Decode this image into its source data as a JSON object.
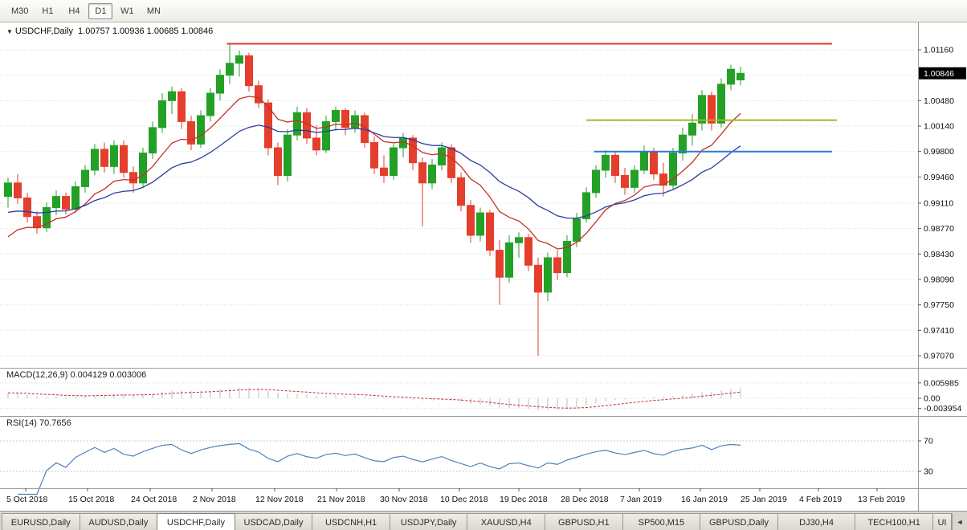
{
  "toolbar": {
    "timeframes": [
      {
        "label": "M30",
        "active": false
      },
      {
        "label": "H1",
        "active": false
      },
      {
        "label": "H4",
        "active": false
      },
      {
        "label": "D1",
        "active": true
      },
      {
        "label": "W1",
        "active": false
      },
      {
        "label": "MN",
        "active": false
      }
    ]
  },
  "chart": {
    "collapse_arrow": "▼",
    "title": "USDCHF,Daily",
    "ohlc": "1.00757 1.00936 1.00685 1.00846",
    "macd_label": "MACD(12,26,9) 0.004129 0.003006",
    "rsi_label": "RSI(14) 70.7656",
    "current_price": "1.00846"
  },
  "price_axis": [
    "1.01160",
    "1.00480",
    "1.00140",
    "0.99800",
    "0.99460",
    "0.99110",
    "0.98770",
    "0.98430",
    "0.98090",
    "0.97750",
    "0.97410",
    "0.97070"
  ],
  "macd_axis": [
    "0.005985",
    "0.00",
    "-0.003954"
  ],
  "rsi_axis": [
    "70",
    "30"
  ],
  "date_axis": [
    "5 Oct 2018",
    "15 Oct 2018",
    "24 Oct 2018",
    "2 Nov 2018",
    "12 Nov 2018",
    "21 Nov 2018",
    "30 Nov 2018",
    "10 Dec 2018",
    "19 Dec 2018",
    "28 Dec 2018",
    "7 Jan 2019",
    "16 Jan 2019",
    "25 Jan 2019",
    "4 Feb 2019",
    "13 Feb 2019"
  ],
  "tabs": [
    {
      "label": "EURUSD,Daily",
      "active": false
    },
    {
      "label": "AUDUSD,Daily",
      "active": false
    },
    {
      "label": "USDCHF,Daily",
      "active": true
    },
    {
      "label": "USDCAD,Daily",
      "active": false
    },
    {
      "label": "USDCNH,H1",
      "active": false
    },
    {
      "label": "USDJPY,Daily",
      "active": false
    },
    {
      "label": "XAUUSD,H4",
      "active": false
    },
    {
      "label": "GBPUSD,H1",
      "active": false
    },
    {
      "label": "SP500,M15",
      "active": false
    },
    {
      "label": "GBPUSD,Daily",
      "active": false
    },
    {
      "label": "DJ30,H4",
      "active": false
    },
    {
      "label": "TECH100,H1",
      "active": false
    },
    {
      "label": "UI",
      "active": false,
      "truncated": true
    }
  ],
  "tab_scroll_arrow": "◄",
  "chart_data": {
    "type": "candlestick",
    "symbol": "USDCHF",
    "timeframe": "Daily",
    "last_ohlc": {
      "open": 1.00757,
      "high": 1.00936,
      "low": 1.00685,
      "close": 1.00846
    },
    "ylim": [
      0.9693,
      1.015
    ],
    "grid_prices": [
      1.0116,
      1.0082,
      1.0048,
      1.0014,
      0.998,
      0.9946,
      0.9911,
      0.9877,
      0.9843,
      0.9809,
      0.9775,
      0.9741,
      0.9707
    ],
    "macd_grid": [
      0.005985,
      0,
      -0.003954
    ],
    "rsi_levels": [
      70,
      30
    ],
    "macd_values": [
      0.004129,
      0.003006
    ],
    "rsi_value": 70.7656,
    "macd_seeds": [
      0.9938,
      0.9915
    ],
    "candles": [
      [
        0.992,
        0.9945,
        0.9905,
        0.9938
      ],
      [
        0.9938,
        0.995,
        0.991,
        0.9918
      ],
      [
        0.9918,
        0.9925,
        0.9885,
        0.9893
      ],
      [
        0.9893,
        0.99,
        0.987,
        0.9878
      ],
      [
        0.9878,
        0.9912,
        0.9872,
        0.9905
      ],
      [
        0.9905,
        0.9928,
        0.9895,
        0.992
      ],
      [
        0.992,
        0.9925,
        0.9896,
        0.9903
      ],
      [
        0.9903,
        0.994,
        0.9898,
        0.9933
      ],
      [
        0.9933,
        0.9962,
        0.9925,
        0.9955
      ],
      [
        0.9955,
        0.999,
        0.9948,
        0.9983
      ],
      [
        0.9983,
        0.9992,
        0.9952,
        0.996
      ],
      [
        0.996,
        0.9995,
        0.995,
        0.9988
      ],
      [
        0.9988,
        0.9995,
        0.9945,
        0.9952
      ],
      [
        0.9952,
        0.996,
        0.9925,
        0.9938
      ],
      [
        0.9938,
        0.9985,
        0.9932,
        0.9978
      ],
      [
        0.9978,
        1.002,
        0.997,
        1.0012
      ],
      [
        1.0012,
        1.0058,
        1.0005,
        1.0048
      ],
      [
        1.0048,
        1.0067,
        1.003,
        1.006
      ],
      [
        1.006,
        1.0065,
        1.001,
        1.002
      ],
      [
        1.002,
        1.0028,
        0.9982,
        0.999
      ],
      [
        0.999,
        1.0035,
        0.9985,
        1.0028
      ],
      [
        1.0028,
        1.0065,
        1.002,
        1.0058
      ],
      [
        1.0058,
        1.009,
        1.0048,
        1.0082
      ],
      [
        1.0082,
        1.0124,
        1.007,
        1.0098
      ],
      [
        1.0098,
        1.0115,
        1.008,
        1.0108
      ],
      [
        1.0108,
        1.0112,
        1.006,
        1.0068
      ],
      [
        1.0068,
        1.0075,
        1.0038,
        1.0045
      ],
      [
        1.0045,
        1.005,
        0.9975,
        0.9985
      ],
      [
        0.9985,
        0.9992,
        0.9935,
        0.9948
      ],
      [
        0.9948,
        1.001,
        0.994,
        1.0002
      ],
      [
        1.0002,
        1.004,
        0.9995,
        1.0032
      ],
      [
        1.0032,
        1.0038,
        0.999,
        0.9998
      ],
      [
        0.9998,
        1.0015,
        0.9975,
        0.9982
      ],
      [
        0.9982,
        1.0028,
        0.9978,
        1.002
      ],
      [
        1.002,
        1.004,
        1.0008,
        1.0035
      ],
      [
        1.0035,
        1.0038,
        1.0002,
        1.0012
      ],
      [
        1.0012,
        1.0035,
        1.0005,
        1.0028
      ],
      [
        1.0028,
        1.0032,
        0.9985,
        0.9992
      ],
      [
        0.9992,
        1.0,
        0.995,
        0.9958
      ],
      [
        0.9958,
        0.9975,
        0.9938,
        0.9948
      ],
      [
        0.9948,
        0.999,
        0.9942,
        0.9985
      ],
      [
        0.9985,
        1.0005,
        0.9972,
        0.9998
      ],
      [
        0.9998,
        1.0002,
        0.9955,
        0.9965
      ],
      [
        0.9965,
        0.9972,
        0.988,
        0.9938
      ],
      [
        0.9938,
        0.997,
        0.993,
        0.9962
      ],
      [
        0.9962,
        0.9992,
        0.9955,
        0.9985
      ],
      [
        0.9985,
        0.999,
        0.9938,
        0.9945
      ],
      [
        0.9945,
        0.9952,
        0.99,
        0.9908
      ],
      [
        0.9908,
        0.9915,
        0.9858,
        0.9868
      ],
      [
        0.9868,
        0.9905,
        0.986,
        0.9898
      ],
      [
        0.9898,
        0.9902,
        0.984,
        0.9848
      ],
      [
        0.9848,
        0.9862,
        0.9775,
        0.9812
      ],
      [
        0.9812,
        0.9868,
        0.9805,
        0.9858
      ],
      [
        0.9858,
        0.9872,
        0.9838,
        0.9865
      ],
      [
        0.9865,
        0.987,
        0.982,
        0.9828
      ],
      [
        0.9828,
        0.9838,
        0.9707,
        0.9792
      ],
      [
        0.9792,
        0.9845,
        0.978,
        0.9838
      ],
      [
        0.9838,
        0.9848,
        0.9808,
        0.9818
      ],
      [
        0.9818,
        0.9868,
        0.9812,
        0.986
      ],
      [
        0.986,
        0.9898,
        0.9852,
        0.989
      ],
      [
        0.989,
        0.9932,
        0.9885,
        0.9925
      ],
      [
        0.9925,
        0.9962,
        0.9918,
        0.9955
      ],
      [
        0.9955,
        0.9982,
        0.9945,
        0.9975
      ],
      [
        0.9975,
        0.998,
        0.9938,
        0.9948
      ],
      [
        0.9948,
        0.9958,
        0.9922,
        0.9932
      ],
      [
        0.9932,
        0.9962,
        0.9925,
        0.9955
      ],
      [
        0.9955,
        0.9988,
        0.995,
        0.998
      ],
      [
        0.998,
        0.9985,
        0.9942,
        0.995
      ],
      [
        0.995,
        0.9965,
        0.992,
        0.9935
      ],
      [
        0.9935,
        0.9985,
        0.993,
        0.9978
      ],
      [
        0.9978,
        1.0012,
        0.9968,
        1.0002
      ],
      [
        1.0002,
        1.003,
        0.9988,
        1.0018
      ],
      [
        1.0018,
        1.0062,
        1.0008,
        1.0055
      ],
      [
        1.0055,
        1.006,
        1.0008,
        1.0018
      ],
      [
        1.0018,
        1.0078,
        1.0012,
        1.007
      ],
      [
        1.007,
        1.0096,
        1.0062,
        1.009
      ],
      [
        1.00757,
        1.00936,
        1.00685,
        1.00846
      ]
    ],
    "overlays": {
      "ma_fast": {
        "type": "ema",
        "period": 10,
        "seed": 0.985,
        "color": "#C23325"
      },
      "ma_slow": {
        "type": "ema",
        "period": 22,
        "seed": 0.9895,
        "color": "#2A3DA0"
      },
      "hlines": [
        {
          "price": 1.0124,
          "color": "#E03A2F",
          "from_bar": 22.7,
          "to_bar": 85.5
        },
        {
          "price": 1.0022,
          "color": "#A9B524",
          "from_bar": 60,
          "to_bar": 86
        },
        {
          "price": 0.998,
          "color": "#2B7CD3",
          "from_bar": 60.8,
          "to_bar": 85.5
        }
      ]
    },
    "colors": {
      "up": "#23A127",
      "down": "#E43E2D",
      "grid": "#DEDEDE",
      "rsi_line": "#4F81BD",
      "macd_hist": "#BDBDBD",
      "macd_signal": "#CE2B2B",
      "badge_bg": "#000000",
      "badge_text": "#FFFFFF"
    }
  }
}
